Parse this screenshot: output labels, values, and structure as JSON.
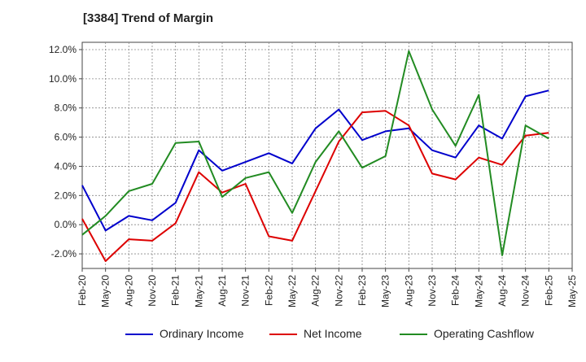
{
  "chart_data": {
    "type": "line",
    "title": "[3384]  Trend of Margin",
    "xlabel": "",
    "ylabel": "",
    "categories": [
      "Feb-20",
      "May-20",
      "Aug-20",
      "Nov-20",
      "Feb-21",
      "May-21",
      "Aug-21",
      "Nov-21",
      "Feb-22",
      "May-22",
      "Aug-22",
      "Nov-22",
      "Feb-23",
      "May-23",
      "Aug-23",
      "Nov-23",
      "Feb-24",
      "May-24",
      "Aug-24",
      "Nov-24",
      "Feb-25",
      "May-25"
    ],
    "ylim": [
      -3.0,
      12.5
    ],
    "yticks": [
      -2.0,
      0.0,
      2.0,
      4.0,
      6.0,
      8.0,
      10.0,
      12.0
    ],
    "ytick_labels": [
      "-2.0%",
      "0.0%",
      "2.0%",
      "4.0%",
      "6.0%",
      "8.0%",
      "10.0%",
      "12.0%"
    ],
    "grid": true,
    "legend_position": "bottom",
    "series": [
      {
        "name": "Ordinary Income",
        "color": "#0000cc",
        "values": [
          2.7,
          -0.4,
          0.6,
          0.3,
          1.5,
          5.1,
          3.7,
          4.3,
          4.9,
          4.2,
          6.6,
          7.9,
          5.8,
          6.4,
          6.6,
          5.1,
          4.6,
          6.8,
          5.9,
          8.8,
          9.2,
          null
        ]
      },
      {
        "name": "Net Income",
        "color": "#dd0000",
        "values": [
          0.4,
          -2.5,
          -1.0,
          -1.1,
          0.1,
          3.6,
          2.2,
          2.8,
          -0.8,
          -1.1,
          2.3,
          5.7,
          7.7,
          7.8,
          6.8,
          3.5,
          3.1,
          4.6,
          4.1,
          6.1,
          6.3,
          null
        ]
      },
      {
        "name": "Operating Cashflow",
        "color": "#228b22",
        "values": [
          -0.7,
          0.6,
          2.3,
          2.8,
          5.6,
          5.7,
          1.9,
          3.2,
          3.6,
          0.8,
          4.3,
          6.4,
          3.9,
          4.7,
          11.9,
          7.9,
          5.4,
          8.9,
          -2.1,
          6.8,
          5.9,
          null
        ]
      }
    ]
  }
}
